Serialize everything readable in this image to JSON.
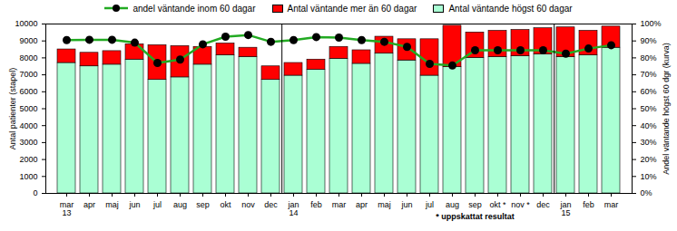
{
  "chart_data": {
    "type": "bar",
    "stacked": true,
    "legend": "top",
    "grid": false,
    "y_label": "Antal patienter (stapel)",
    "y2_label": "Andel väntande högst 60 dgr (kurva)",
    "annotation": "* uppskattat resultat",
    "categories": [
      "mar\n13",
      "apr",
      "maj",
      "jun",
      "jul",
      "aug",
      "sep",
      "okt",
      "nov",
      "dec",
      "jan\n14",
      "feb",
      "mar",
      "apr",
      "maj",
      "jun",
      "jul",
      "aug",
      "sep",
      "okt *",
      "nov *",
      "dec",
      "jan\n15",
      "feb",
      "mar"
    ],
    "ylim": [
      0,
      10000
    ],
    "yticks": [
      0,
      1000,
      2000,
      3000,
      4000,
      5000,
      6000,
      7000,
      8000,
      9000,
      10000
    ],
    "y2lim": [
      0,
      100
    ],
    "y2ticks": [
      {
        "value": 0,
        "label": "0%"
      },
      {
        "value": 10,
        "label": "10%"
      },
      {
        "value": 20,
        "label": "20%"
      },
      {
        "value": 30,
        "label": "30%"
      },
      {
        "value": 40,
        "label": "40%"
      },
      {
        "value": 50,
        "label": "50%"
      },
      {
        "value": 60,
        "label": "60%"
      },
      {
        "value": 70,
        "label": "70%"
      },
      {
        "value": 80,
        "label": "80%"
      },
      {
        "value": 90,
        "label": "90%"
      },
      {
        "value": 100,
        "label": "100%"
      }
    ],
    "series": [
      {
        "name": "Antal väntande högst 60 dagar",
        "type": "bar",
        "color": "#aaffd4",
        "values": [
          7700,
          7500,
          7600,
          7900,
          6700,
          6850,
          7600,
          8150,
          8050,
          6700,
          6950,
          7300,
          7950,
          7650,
          8250,
          7850,
          6950,
          7450,
          8000,
          8050,
          8100,
          8200,
          8050,
          8150,
          8600
        ]
      },
      {
        "name": "Antal väntande mer än 60 dagar",
        "type": "bar",
        "color": "#ff0000",
        "values": [
          800,
          800,
          800,
          900,
          2050,
          1850,
          1050,
          700,
          550,
          800,
          750,
          600,
          700,
          800,
          1000,
          1250,
          2150,
          2450,
          1500,
          1550,
          1550,
          1550,
          1750,
          1450,
          1250
        ]
      },
      {
        "name": "andel väntande inom 60 dagar",
        "type": "line",
        "axis": "y2",
        "color": "#22aa22",
        "marker": "circle",
        "values": [
          90.5,
          90.7,
          90.7,
          89,
          77,
          79,
          88,
          92.5,
          93.5,
          89.5,
          90.5,
          92.3,
          92,
          90.5,
          89.5,
          86.5,
          76.5,
          75.5,
          84.5,
          84.5,
          84.5,
          84.5,
          82.5,
          85.5,
          87.5
        ]
      }
    ]
  }
}
